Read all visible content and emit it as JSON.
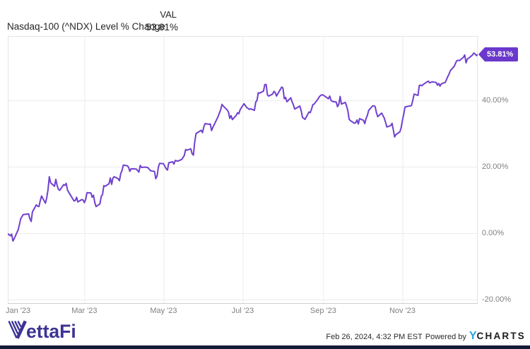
{
  "header": {
    "title": "Nasdaq-100 (^NDX) Level % Change",
    "val_label": "VAL",
    "val_value": "53.81%"
  },
  "chart_data": {
    "type": "line",
    "title": "Nasdaq-100 (^NDX) Level % Change",
    "x_unit": "days since Jan 1 2023",
    "x_range": [
      0,
      362
    ],
    "ylim": [
      -21.3,
      59.4
    ],
    "grid": true,
    "legend": "none",
    "y_ticks": [
      {
        "value": 40,
        "label": "40.00%"
      },
      {
        "value": 20,
        "label": "20.00%"
      },
      {
        "value": 0,
        "label": "0.00%"
      },
      {
        "value": -20,
        "label": "-20.00%"
      }
    ],
    "x_ticks": [
      {
        "day": 0,
        "label": "Jan '23"
      },
      {
        "day": 59,
        "label": "Mar '23"
      },
      {
        "day": 120,
        "label": "May '23"
      },
      {
        "day": 181,
        "label": "Jul '23"
      },
      {
        "day": 243,
        "label": "Sep '23"
      },
      {
        "day": 304,
        "label": "Nov '23"
      }
    ],
    "end_label": "53.81%",
    "series": [
      {
        "name": "Nasdaq-100 (^NDX) Level % Change",
        "color": "#7040cf",
        "points": [
          [
            0,
            -0.2
          ],
          [
            2,
            -0.8
          ],
          [
            3,
            -0.3
          ],
          [
            4,
            -2.4
          ],
          [
            5,
            -1.6
          ],
          [
            8,
            1.0
          ],
          [
            9,
            2.6
          ],
          [
            10,
            4.4
          ],
          [
            11,
            5.0
          ],
          [
            12,
            5.6
          ],
          [
            16,
            5.8
          ],
          [
            17,
            4.4
          ],
          [
            18,
            3.5
          ],
          [
            19,
            6.4
          ],
          [
            22,
            8.5
          ],
          [
            23,
            8.1
          ],
          [
            24,
            8.0
          ],
          [
            25,
            9.7
          ],
          [
            26,
            11.2
          ],
          [
            29,
            9.0
          ],
          [
            30,
            10.6
          ],
          [
            31,
            13.0
          ],
          [
            32,
            17.0
          ],
          [
            33,
            15.2
          ],
          [
            36,
            14.1
          ],
          [
            37,
            16.2
          ],
          [
            38,
            14.4
          ],
          [
            39,
            13.2
          ],
          [
            40,
            12.9
          ],
          [
            43,
            14.6
          ],
          [
            44,
            14.4
          ],
          [
            45,
            15.0
          ],
          [
            46,
            13.0
          ],
          [
            47,
            12.3
          ],
          [
            51,
            9.7
          ],
          [
            52,
            9.8
          ],
          [
            53,
            10.8
          ],
          [
            54,
            9.4
          ],
          [
            57,
            10.1
          ],
          [
            58,
            10.0
          ],
          [
            59,
            9.2
          ],
          [
            60,
            10.1
          ],
          [
            61,
            12.2
          ],
          [
            64,
            12.1
          ],
          [
            65,
            10.8
          ],
          [
            66,
            11.4
          ],
          [
            67,
            9.3
          ],
          [
            68,
            8.0
          ],
          [
            71,
            8.8
          ],
          [
            72,
            11.1
          ],
          [
            73,
            11.6
          ],
          [
            74,
            14.3
          ],
          [
            75,
            14.1
          ],
          [
            78,
            14.9
          ],
          [
            79,
            16.6
          ],
          [
            80,
            14.7
          ],
          [
            81,
            16.6
          ],
          [
            82,
            17.0
          ],
          [
            85,
            16.4
          ],
          [
            86,
            15.8
          ],
          [
            87,
            17.9
          ],
          [
            88,
            18.9
          ],
          [
            89,
            20.5
          ],
          [
            92,
            20.3
          ],
          [
            93,
            19.9
          ],
          [
            94,
            18.6
          ],
          [
            95,
            19.4
          ],
          [
            99,
            19.3
          ],
          [
            101,
            18.4
          ],
          [
            102,
            20.4
          ],
          [
            103,
            19.8
          ],
          [
            106,
            19.9
          ],
          [
            108,
            19.7
          ],
          [
            110,
            18.8
          ],
          [
            113,
            18.6
          ],
          [
            114,
            16.4
          ],
          [
            115,
            17.2
          ],
          [
            116,
            19.9
          ],
          [
            117,
            21.0
          ],
          [
            120,
            20.9
          ],
          [
            122,
            19.4
          ],
          [
            123,
            19.0
          ],
          [
            124,
            21.2
          ],
          [
            127,
            21.5
          ],
          [
            128,
            20.8
          ],
          [
            129,
            21.9
          ],
          [
            131,
            21.7
          ],
          [
            134,
            22.2
          ],
          [
            136,
            23.4
          ],
          [
            137,
            25.2
          ],
          [
            138,
            25.0
          ],
          [
            141,
            25.4
          ],
          [
            142,
            23.9
          ],
          [
            143,
            23.5
          ],
          [
            144,
            27.4
          ],
          [
            145,
            30.0
          ],
          [
            149,
            31.0
          ],
          [
            150,
            30.3
          ],
          [
            151,
            32.0
          ],
          [
            152,
            33.0
          ],
          [
            155,
            32.8
          ],
          [
            156,
            32.9
          ],
          [
            157,
            30.9
          ],
          [
            158,
            31.9
          ],
          [
            159,
            32.7
          ],
          [
            162,
            35.1
          ],
          [
            163,
            36.2
          ],
          [
            164,
            37.2
          ],
          [
            165,
            38.8
          ],
          [
            166,
            38.3
          ],
          [
            169,
            37.1
          ],
          [
            170,
            36.5
          ],
          [
            171,
            34.6
          ],
          [
            172,
            35.4
          ],
          [
            173,
            34.2
          ],
          [
            176,
            35.5
          ],
          [
            177,
            36.3
          ],
          [
            178,
            36.0
          ],
          [
            179,
            37.2
          ],
          [
            182,
            39.0
          ],
          [
            184,
            37.9
          ],
          [
            186,
            37.3
          ],
          [
            187,
            37.5
          ],
          [
            190,
            37.0
          ],
          [
            191,
            39.5
          ],
          [
            192,
            40.0
          ],
          [
            193,
            42.3
          ],
          [
            194,
            42.2
          ],
          [
            197,
            42.8
          ],
          [
            198,
            44.8
          ],
          [
            199,
            44.8
          ],
          [
            200,
            41.7
          ],
          [
            201,
            41.3
          ],
          [
            204,
            41.9
          ],
          [
            205,
            42.7
          ],
          [
            206,
            42.4
          ],
          [
            207,
            41.3
          ],
          [
            208,
            42.0
          ],
          [
            211,
            44.0
          ],
          [
            212,
            43.7
          ],
          [
            213,
            40.5
          ],
          [
            214,
            40.9
          ],
          [
            215,
            39.6
          ],
          [
            218,
            40.8
          ],
          [
            219,
            39.6
          ],
          [
            220,
            38.7
          ],
          [
            221,
            37.4
          ],
          [
            222,
            37.6
          ],
          [
            225,
            38.3
          ],
          [
            226,
            36.9
          ],
          [
            227,
            34.9
          ],
          [
            228,
            34.6
          ],
          [
            229,
            34.3
          ],
          [
            232,
            36.5
          ],
          [
            233,
            36.3
          ],
          [
            234,
            37.4
          ],
          [
            235,
            38.7
          ],
          [
            236,
            38.9
          ],
          [
            239,
            40.4
          ],
          [
            240,
            41.1
          ],
          [
            241,
            41.5
          ],
          [
            242,
            41.7
          ],
          [
            243,
            41.6
          ],
          [
            247,
            40.5
          ],
          [
            248,
            41.3
          ],
          [
            249,
            40.0
          ],
          [
            250,
            39.7
          ],
          [
            253,
            39.5
          ],
          [
            254,
            38.1
          ],
          [
            255,
            38.8
          ],
          [
            256,
            41.2
          ],
          [
            257,
            38.9
          ],
          [
            260,
            39.4
          ],
          [
            261,
            38.3
          ],
          [
            262,
            36.8
          ],
          [
            263,
            34.3
          ],
          [
            264,
            33.9
          ],
          [
            267,
            33.1
          ],
          [
            268,
            33.3
          ],
          [
            269,
            34.1
          ],
          [
            270,
            32.9
          ],
          [
            271,
            34.5
          ],
          [
            274,
            34.0
          ],
          [
            275,
            33.0
          ],
          [
            276,
            34.5
          ],
          [
            277,
            35.5
          ],
          [
            278,
            37.0
          ],
          [
            281,
            38.3
          ],
          [
            282,
            38.4
          ],
          [
            283,
            38.1
          ],
          [
            284,
            36.3
          ],
          [
            285,
            35.1
          ],
          [
            288,
            36.2
          ],
          [
            289,
            35.4
          ],
          [
            290,
            34.7
          ],
          [
            291,
            33.4
          ],
          [
            292,
            32.0
          ],
          [
            295,
            32.4
          ],
          [
            296,
            33.1
          ],
          [
            297,
            31.1
          ],
          [
            298,
            29.0
          ],
          [
            299,
            29.7
          ],
          [
            302,
            30.5
          ],
          [
            303,
            31.7
          ],
          [
            304,
            34.0
          ],
          [
            305,
            35.8
          ],
          [
            306,
            38.0
          ],
          [
            309,
            38.3
          ],
          [
            310,
            38.3
          ],
          [
            311,
            38.5
          ],
          [
            312,
            40.0
          ],
          [
            313,
            41.9
          ],
          [
            316,
            41.5
          ],
          [
            317,
            44.5
          ],
          [
            318,
            44.6
          ],
          [
            319,
            44.4
          ],
          [
            320,
            44.8
          ],
          [
            323,
            45.6
          ],
          [
            324,
            45.8
          ],
          [
            325,
            45.3
          ],
          [
            327,
            45.6
          ],
          [
            330,
            45.4
          ],
          [
            331,
            44.6
          ],
          [
            332,
            45.1
          ],
          [
            333,
            44.3
          ],
          [
            334,
            45.0
          ],
          [
            337,
            45.4
          ],
          [
            338,
            46.3
          ],
          [
            339,
            47.2
          ],
          [
            340,
            48.0
          ],
          [
            341,
            49.0
          ],
          [
            344,
            50.3
          ],
          [
            345,
            51.3
          ],
          [
            346,
            52.0
          ],
          [
            347,
            52.1
          ],
          [
            348,
            52.0
          ],
          [
            351,
            53.0
          ],
          [
            352,
            53.7
          ],
          [
            353,
            51.3
          ],
          [
            354,
            52.5
          ],
          [
            355,
            52.7
          ],
          [
            358,
            53.7
          ],
          [
            359,
            54.3
          ],
          [
            360,
            54.0
          ],
          [
            361,
            53.5
          ],
          [
            362,
            53.81
          ]
        ]
      }
    ]
  },
  "footer": {
    "vettafi_text": "VettaFi",
    "timestamp": "Feb 26, 2024, 4:32 PM EST",
    "powered_by": "Powered by",
    "ycharts_y": "Y",
    "ycharts_rest": "CHARTS"
  },
  "colors": {
    "line": "#7040cf",
    "badge_bg": "#6a38cc",
    "grid": "#ececec",
    "plot_border": "#e4e4e4",
    "axis_bottom": "#cfcfcf",
    "axis_text": "#808080",
    "header_text": "#262626",
    "vettafi_purple": "#3d3494",
    "ycharts_blue": "#29a3e0",
    "ycharts_dark": "#1a1c20",
    "bottom_bar": "#131b36"
  }
}
